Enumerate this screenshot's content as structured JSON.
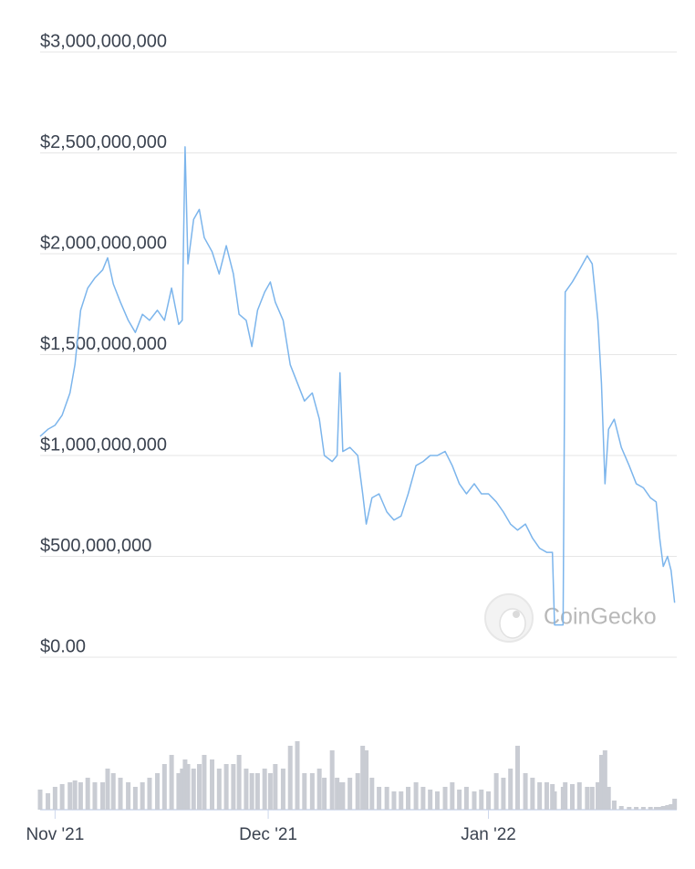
{
  "chart_data": {
    "type": "line",
    "x": [
      -2.1,
      -1.0,
      0,
      1.0,
      2.1,
      2.8,
      3.6,
      4.6,
      5.6,
      6.7,
      7.4,
      8.2,
      9.2,
      10.3,
      11.3,
      12.3,
      13.3,
      14.4,
      15.4,
      16.4,
      17.4,
      17.9,
      18.3,
      18.7,
      19.5,
      20.3,
      21.0,
      22.1,
      23.1,
      24.1,
      25.1,
      25.9,
      26.9,
      27.7,
      28.5,
      29.5,
      30.3,
      31.0,
      32.1,
      33.1,
      34.1,
      35.1,
      36.2,
      37.2,
      37.9,
      39.0,
      39.7,
      40.1,
      40.5,
      41.5,
      42.6,
      43.3,
      43.8,
      44.6,
      45.6,
      46.7,
      47.7,
      48.7,
      49.7,
      50.8,
      51.8,
      52.8,
      53.8,
      54.9,
      55.9,
      56.9,
      57.9,
      59.0,
      60.0,
      61.0,
      62.1,
      63.1,
      64.1,
      65.1,
      66.2,
      67.2,
      68.2,
      69.2,
      70.0,
      70.3,
      71.5,
      71.8,
      72.8,
      73.8,
      74.9,
      75.6,
      76.4,
      76.9,
      77.4,
      77.9,
      78.7,
      79.7,
      80.8,
      81.8,
      82.8,
      83.8,
      84.6,
      85.1,
      85.6,
      86.2,
      86.7,
      87.2
    ],
    "series": [
      {
        "color": "#7cb5ec",
        "values": [
          1095000000,
          1130000000,
          1150000000,
          1200000000,
          1310000000,
          1450000000,
          1720000000,
          1830000000,
          1880000000,
          1920000000,
          1980000000,
          1850000000,
          1760000000,
          1670000000,
          1610000000,
          1700000000,
          1670000000,
          1720000000,
          1670000000,
          1830000000,
          1650000000,
          1670000000,
          2530000000,
          1950000000,
          2170000000,
          2220000000,
          2080000000,
          2010000000,
          1900000000,
          2040000000,
          1900000000,
          1700000000,
          1670000000,
          1540000000,
          1720000000,
          1810000000,
          1860000000,
          1760000000,
          1670000000,
          1450000000,
          1360000000,
          1270000000,
          1310000000,
          1180000000,
          1000000000,
          970000000,
          1000000000,
          1410000000,
          1020000000,
          1040000000,
          1000000000,
          810000000,
          660000000,
          790000000,
          810000000,
          720000000,
          680000000,
          700000000,
          810000000,
          950000000,
          970000000,
          1000000000,
          1000000000,
          1020000000,
          950000000,
          860000000,
          810000000,
          860000000,
          810000000,
          810000000,
          770000000,
          720000000,
          660000000,
          630000000,
          660000000,
          590000000,
          540000000,
          520000000,
          520000000,
          160000000,
          160000000,
          1810000000,
          1860000000,
          1920000000,
          1990000000,
          1950000000,
          1670000000,
          1360000000,
          860000000,
          1130000000,
          1180000000,
          1040000000,
          950000000,
          860000000,
          840000000,
          790000000,
          770000000,
          590000000,
          450000000,
          500000000,
          430000000,
          270000000
        ]
      }
    ],
    "volume": {
      "color": "#c9ccd3",
      "values": [
        22,
        18,
        25,
        28,
        30,
        32,
        30,
        35,
        30,
        30,
        45,
        40,
        35,
        30,
        25,
        30,
        35,
        40,
        50,
        60,
        40,
        45,
        55,
        50,
        45,
        50,
        60,
        55,
        45,
        50,
        50,
        60,
        45,
        40,
        40,
        45,
        40,
        50,
        45,
        70,
        75,
        40,
        40,
        45,
        35,
        65,
        35,
        30,
        30,
        35,
        40,
        70,
        65,
        35,
        25,
        25,
        20,
        20,
        25,
        30,
        25,
        22,
        20,
        25,
        30,
        22,
        25,
        20,
        22,
        20,
        40,
        35,
        45,
        70,
        40,
        35,
        30,
        30,
        28,
        20,
        25,
        30,
        28,
        30,
        25,
        25,
        30,
        60,
        65,
        25,
        10,
        4,
        3,
        3,
        3,
        3,
        3,
        3,
        4,
        5,
        6,
        12
      ]
    },
    "xlim": [
      -2.1,
      87.5
    ],
    "xticks": [
      {
        "value": 0,
        "label": "Nov '21"
      },
      {
        "value": 30,
        "label": "Dec '21"
      },
      {
        "value": 61,
        "label": "Jan '22"
      }
    ],
    "ylim": [
      0,
      3000000000
    ],
    "yticks": [
      {
        "value": 0,
        "label": "$0.00"
      },
      {
        "value": 500000000,
        "label": "$500,000,000"
      },
      {
        "value": 1000000000,
        "label": "$1,000,000,000"
      },
      {
        "value": 1500000000,
        "label": "$1,500,000,000"
      },
      {
        "value": 2000000000,
        "label": "$2,000,000,000"
      },
      {
        "value": 2500000000,
        "label": "$2,500,000,000"
      },
      {
        "value": 3000000000,
        "label": "$3,000,000,000"
      }
    ],
    "y2lim": [
      0,
      100
    ],
    "grid": true,
    "watermark": "CoinGecko"
  }
}
